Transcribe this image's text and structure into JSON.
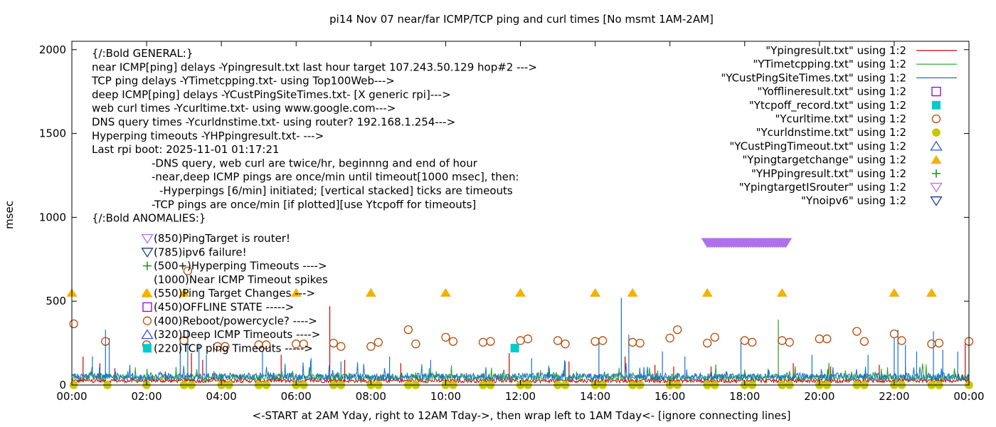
{
  "chart_data": {
    "type": "line",
    "title": "pi14 Nov 07  near/far ICMP/TCP ping and curl times [No msmt 1AM-2AM]",
    "xlabel": "<-START at 2AM Yday, right to 12AM Tday->, then wrap left to 1AM Tday<- [ignore connecting lines]",
    "ylabel": "msec",
    "xlim": [
      0,
      24
    ],
    "ylim": [
      0,
      2050
    ],
    "grid": false,
    "legend_position": "top-right",
    "x_ticks": [
      {
        "v": 0,
        "label": "00:00"
      },
      {
        "v": 2,
        "label": "02:00"
      },
      {
        "v": 4,
        "label": "04:00"
      },
      {
        "v": 6,
        "label": "06:00"
      },
      {
        "v": 8,
        "label": "08:00"
      },
      {
        "v": 10,
        "label": "10:00"
      },
      {
        "v": 12,
        "label": "12:00"
      },
      {
        "v": 14,
        "label": "14:00"
      },
      {
        "v": 16,
        "label": "16:00"
      },
      {
        "v": 18,
        "label": "18:00"
      },
      {
        "v": 20,
        "label": "20:00"
      },
      {
        "v": 22,
        "label": "22:00"
      },
      {
        "v": 24,
        "label": "00:00"
      }
    ],
    "y_ticks": [
      {
        "v": 0,
        "label": "0"
      },
      {
        "v": 500,
        "label": "500"
      },
      {
        "v": 1000,
        "label": "1000"
      },
      {
        "v": 1500,
        "label": "1500"
      },
      {
        "v": 2000,
        "label": "2000"
      }
    ],
    "legend": [
      {
        "label": "\"Ypingresult.txt\" using 1:2",
        "kind": "line",
        "color": "#cc0000"
      },
      {
        "label": "\"YTimetcpping.txt\" using 1:2",
        "kind": "line",
        "color": "#22a022"
      },
      {
        "label": "\"YCustPingSiteTimes.txt\" using 1:2",
        "kind": "line",
        "color": "#1a6fd0"
      },
      {
        "label": "\"Yofflineresult.txt\" using 1:2",
        "kind": "open-square",
        "color": "#9400d3"
      },
      {
        "label": "\"Ytcpoff_record.txt\" using 1:2",
        "kind": "filled-square",
        "color": "#00cccc"
      },
      {
        "label": "\"Ycurltime.txt\" using 1:2",
        "kind": "open-circle",
        "color": "#b84a0a"
      },
      {
        "label": "\"Ycurldnstime.txt\" using 1:2",
        "kind": "filled-circle",
        "color": "#c8c800"
      },
      {
        "label": "\"YCustPingTimeout.txt\" using 1:2",
        "kind": "open-triangle",
        "color": "#2a5ad6"
      },
      {
        "label": "\"Ypingtargetchange\" using 1:2",
        "kind": "filled-triangle",
        "color": "#f5b000"
      },
      {
        "label": "\"YHPpingresult.txt\" using 1:2",
        "kind": "plus",
        "color": "#118811"
      },
      {
        "label": "\"YpingtargetISrouter\" using 1:2",
        "kind": "open-down-triangle",
        "color": "#b070ee"
      },
      {
        "label": "\"Ynoipv6\" using 1:2",
        "kind": "open-down-triangle",
        "color": "#1a3a8a"
      }
    ],
    "annotations_general": [
      {
        "text": "{/:Bold GENERAL:}",
        "indent": 0
      },
      {
        "text": "near ICMP[ping] delays -Ypingresult.txt last hour target 107.243.50.129 hop#2 --->",
        "indent": 0
      },
      {
        "text": "TCP ping delays -YTimetcpping.txt- using Top100Web--->",
        "indent": 0
      },
      {
        "text": "deep ICMP[ping] delays -YCustPingSiteTimes.txt- [X generic rpi]--->",
        "indent": 0
      },
      {
        "text": "web curl times -Ycurltime.txt- using www.google.com--->",
        "indent": 0
      },
      {
        "text": "DNS query times -Ycurldnstime.txt- using router? 192.168.1.254--->",
        "indent": 0
      },
      {
        "text": "Hyperping timeouts -YHPpingresult.txt- --->",
        "indent": 0
      },
      {
        "text": "Last rpi boot: 2025-11-01 01:17:21",
        "indent": 0
      },
      {
        "text": "-DNS query, web curl are twice/hr, beginnng and end of hour",
        "indent": 1
      },
      {
        "text": "-near,deep ICMP pings are once/min until timeout[1000 msec], then:",
        "indent": 1
      },
      {
        "text": "-Hyperpings [6/min] initiated; [vertical stacked] ticks are timeouts",
        "indent": 2
      },
      {
        "text": "-TCP pings are once/min [if plotted][use Ytcpoff for timeouts]",
        "indent": 1
      },
      {
        "text": "{/:Bold ANOMALIES:}",
        "indent": 0
      }
    ],
    "annotations_anomalies": [
      {
        "text": "(850)PingTarget is router!",
        "marker": "open-down-triangle",
        "color": "#b070ee"
      },
      {
        "text": "(785)ipv6 failure!",
        "marker": "open-down-triangle",
        "color": "#1a3a8a"
      },
      {
        "text": "(500+)Hyperping Timeouts ---->",
        "marker": "plus",
        "color": "#118811"
      },
      {
        "text": "(1000)Near ICMP Timeout spikes",
        "marker": "none",
        "color": "#000000"
      },
      {
        "text": "(550)Ping Target Changes --->",
        "marker": "filled-triangle",
        "color": "#f5b000"
      },
      {
        "text": "(450)OFFLINE STATE ----->",
        "marker": "open-square",
        "color": "#9400d3"
      },
      {
        "text": "(400)Reboot/powercycle? ---->",
        "marker": "open-circle",
        "color": "#b84a0a"
      },
      {
        "text": "(320)Deep ICMP Timeouts ---->",
        "marker": "open-triangle",
        "color": "#2a5ad6"
      },
      {
        "text": "(220)TCP ping Timeouts ----->",
        "marker": "filled-square",
        "color": "#00cccc"
      }
    ],
    "series": [
      {
        "name": "\"Ypingresult.txt\" using 1:2",
        "kind": "line",
        "color": "#cc0000",
        "baseline": 25,
        "spikes": [
          [
            0.3,
            170
          ],
          [
            0.75,
            130
          ],
          [
            1.15,
            100
          ],
          [
            2.5,
            80
          ],
          [
            3.2,
            190
          ],
          [
            3.5,
            150
          ],
          [
            5.6,
            180
          ],
          [
            6.9,
            470
          ],
          [
            7.3,
            150
          ],
          [
            8.8,
            130
          ],
          [
            11.7,
            190
          ],
          [
            13.3,
            140
          ],
          [
            14.8,
            170
          ],
          [
            15.6,
            120
          ],
          [
            16.1,
            110
          ],
          [
            17.1,
            110
          ],
          [
            19.3,
            130
          ],
          [
            20.3,
            110
          ],
          [
            21.6,
            120
          ],
          [
            22.3,
            110
          ],
          [
            23.9,
            250
          ]
        ]
      },
      {
        "name": "\"YTimetcpping.txt\" using 1:2",
        "kind": "line",
        "color": "#22a022",
        "baseline": 45,
        "spikes": [
          [
            0.9,
            80
          ],
          [
            2.4,
            70
          ],
          [
            4.0,
            70
          ],
          [
            7.0,
            70
          ],
          [
            9.2,
            75
          ],
          [
            11.0,
            70
          ],
          [
            13.5,
            80
          ],
          [
            14.6,
            70
          ],
          [
            17.5,
            80
          ],
          [
            18.9,
            390
          ],
          [
            21.0,
            75
          ],
          [
            23.6,
            80
          ]
        ]
      },
      {
        "name": "\"YCustPingSiteTimes.txt\" using 1:2",
        "kind": "line",
        "color": "#1a6fd0",
        "baseline": 50,
        "spikes": [
          [
            0.55,
            170
          ],
          [
            0.9,
            330
          ],
          [
            1.0,
            280
          ],
          [
            2.9,
            270
          ],
          [
            3.1,
            330
          ],
          [
            3.4,
            240
          ],
          [
            3.6,
            180
          ],
          [
            5.1,
            200
          ],
          [
            6.4,
            160
          ],
          [
            7.2,
            140
          ],
          [
            8.5,
            170
          ],
          [
            9.6,
            150
          ],
          [
            12.3,
            160
          ],
          [
            13.2,
            140
          ],
          [
            14.1,
            280
          ],
          [
            14.7,
            520
          ],
          [
            14.9,
            300
          ],
          [
            15.8,
            200
          ],
          [
            16.4,
            170
          ],
          [
            17.9,
            280
          ],
          [
            19.8,
            180
          ],
          [
            21.3,
            180
          ],
          [
            22.0,
            280
          ],
          [
            22.1,
            330
          ],
          [
            22.3,
            240
          ],
          [
            22.6,
            200
          ],
          [
            23.05,
            320
          ],
          [
            23.3,
            210
          ],
          [
            23.7,
            200
          ]
        ]
      },
      {
        "name": "\"Ycurltime.txt\" using 1:2",
        "kind": "open-circle",
        "color": "#b84a0a",
        "points": [
          [
            0.05,
            365
          ],
          [
            0.9,
            260
          ],
          [
            2.0,
            240
          ],
          [
            3.0,
            265
          ],
          [
            3.1,
            680
          ],
          [
            3.9,
            230
          ],
          [
            4.1,
            230
          ],
          [
            5.0,
            240
          ],
          [
            5.2,
            240
          ],
          [
            6.0,
            245
          ],
          [
            6.2,
            245
          ],
          [
            7.0,
            250
          ],
          [
            7.2,
            230
          ],
          [
            8.0,
            230
          ],
          [
            8.2,
            255
          ],
          [
            9.0,
            330
          ],
          [
            9.2,
            245
          ],
          [
            10.0,
            285
          ],
          [
            10.2,
            260
          ],
          [
            11.0,
            255
          ],
          [
            11.2,
            260
          ],
          [
            12.0,
            265
          ],
          [
            12.2,
            275
          ],
          [
            13.0,
            265
          ],
          [
            13.2,
            245
          ],
          [
            14.0,
            260
          ],
          [
            14.2,
            265
          ],
          [
            15.0,
            255
          ],
          [
            15.2,
            250
          ],
          [
            16.0,
            280
          ],
          [
            16.2,
            330
          ],
          [
            17.0,
            250
          ],
          [
            17.2,
            285
          ],
          [
            18.0,
            265
          ],
          [
            18.2,
            255
          ],
          [
            19.0,
            265
          ],
          [
            19.2,
            255
          ],
          [
            20.0,
            275
          ],
          [
            20.2,
            275
          ],
          [
            21.0,
            320
          ],
          [
            21.2,
            260
          ],
          [
            22.0,
            305
          ],
          [
            22.2,
            265
          ],
          [
            23.0,
            245
          ],
          [
            23.2,
            250
          ],
          [
            24.0,
            260
          ]
        ]
      },
      {
        "name": "\"Ycurldnstime.txt\" using 1:2",
        "kind": "filled-circle",
        "color": "#c8c800",
        "points": [
          [
            0.05,
            0
          ],
          [
            0.95,
            0
          ],
          [
            2.0,
            0
          ],
          [
            3.0,
            0
          ],
          [
            3.2,
            0
          ],
          [
            4.0,
            0
          ],
          [
            4.2,
            0
          ],
          [
            5.0,
            0
          ],
          [
            5.2,
            0
          ],
          [
            6.0,
            0
          ],
          [
            6.2,
            0
          ],
          [
            7.0,
            0
          ],
          [
            7.2,
            0
          ],
          [
            8.0,
            0
          ],
          [
            8.2,
            0
          ],
          [
            9.0,
            0
          ],
          [
            9.2,
            0
          ],
          [
            10.0,
            0
          ],
          [
            10.2,
            0
          ],
          [
            11.0,
            0
          ],
          [
            11.2,
            0
          ],
          [
            12.0,
            0
          ],
          [
            12.2,
            0
          ],
          [
            13.0,
            0
          ],
          [
            13.2,
            0
          ],
          [
            14.0,
            0
          ],
          [
            14.2,
            0
          ],
          [
            15.0,
            0
          ],
          [
            15.2,
            0
          ],
          [
            16.0,
            0
          ],
          [
            16.2,
            0
          ],
          [
            17.0,
            0
          ],
          [
            17.2,
            0
          ],
          [
            18.0,
            0
          ],
          [
            18.2,
            0
          ],
          [
            19.0,
            0
          ],
          [
            19.2,
            0
          ],
          [
            20.0,
            0
          ],
          [
            20.2,
            0
          ],
          [
            21.0,
            0
          ],
          [
            21.2,
            0
          ],
          [
            22.0,
            0
          ],
          [
            22.2,
            0
          ],
          [
            23.0,
            0
          ],
          [
            23.2,
            0
          ],
          [
            24.0,
            0
          ]
        ]
      },
      {
        "name": "\"Ypingtargetchange\" using 1:2",
        "kind": "filled-triangle",
        "color": "#f5b000",
        "points": [
          [
            0,
            550
          ],
          [
            2,
            550
          ],
          [
            3,
            550
          ],
          [
            6,
            550
          ],
          [
            8,
            550
          ],
          [
            10,
            550
          ],
          [
            12,
            550
          ],
          [
            14,
            550
          ],
          [
            15,
            550
          ],
          [
            17,
            550
          ],
          [
            19,
            550
          ],
          [
            22,
            550
          ],
          [
            23,
            550
          ]
        ]
      },
      {
        "name": "\"YpingtargetISrouter\" using 1:2",
        "kind": "open-down-triangle",
        "color": "#b070ee",
        "range": [
          17.0,
          19.1
        ],
        "value": 850
      },
      {
        "name": "\"Ytcpoff_record.txt\" using 1:2",
        "kind": "filled-square",
        "color": "#00cccc",
        "points": [
          [
            11.85,
            220
          ]
        ]
      }
    ]
  }
}
